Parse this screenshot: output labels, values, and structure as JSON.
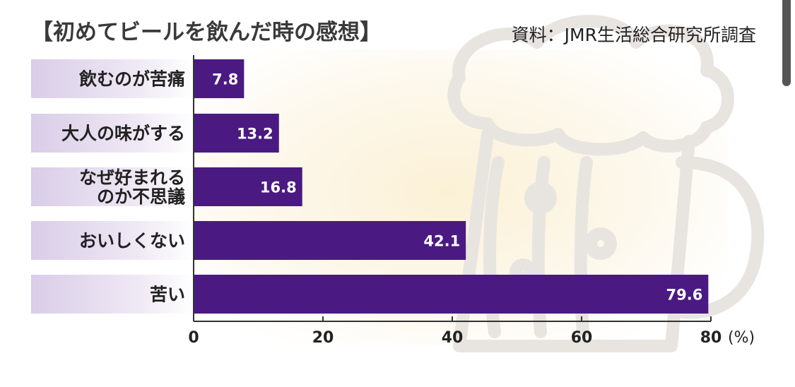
{
  "chart_data": {
    "type": "bar",
    "orientation": "horizontal",
    "title": "【初めてビールを飲んだ時の感想】",
    "source": "資料：JMR生活総合研究所調査",
    "categories": [
      [
        "飲むのが苦痛"
      ],
      [
        "大人の味がする"
      ],
      [
        "なぜ好まれる",
        "のか不思議"
      ],
      [
        "おいしくない"
      ],
      [
        "苦い"
      ]
    ],
    "values": [
      7.8,
      13.2,
      16.8,
      42.1,
      79.6
    ],
    "value_labels": [
      "7.8",
      "13.2",
      "16.8",
      "42.1",
      "79.6"
    ],
    "xlim": [
      0,
      80
    ],
    "xticks": [
      "0",
      "20",
      "40",
      "60",
      "80"
    ],
    "xunit": "(%)",
    "grid": false,
    "colors": {
      "bar": "#4a1a82",
      "label_band": "#d8cce6",
      "background_glow": "#fbf2dc",
      "mug": "#e9e6e2"
    }
  }
}
